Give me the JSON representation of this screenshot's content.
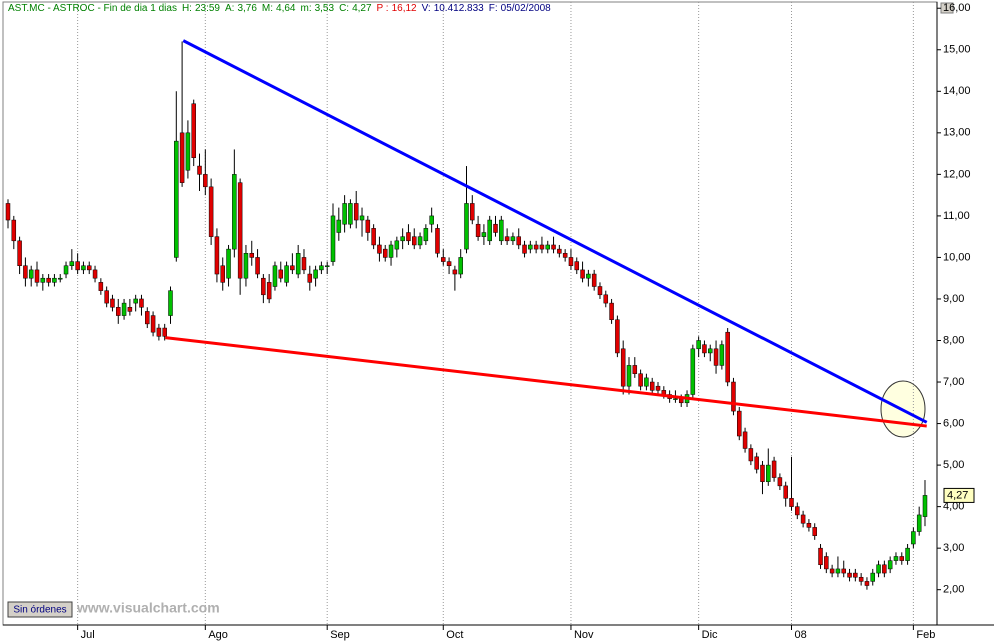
{
  "chart_data": {
    "type": "candlestick",
    "header": {
      "title": "AST.MC - ASTROC - Fin de dia 1 dias",
      "items": [
        {
          "label": "H:",
          "value": "23:59",
          "color": "#008000"
        },
        {
          "label": "A:",
          "value": "3,76",
          "color": "#008000"
        },
        {
          "label": "M:",
          "value": "4,64",
          "color": "#008000"
        },
        {
          "label": "m:",
          "value": "3,53",
          "color": "#008000"
        },
        {
          "label": "C:",
          "value": "4,27",
          "color": "#008000"
        },
        {
          "label": "P :",
          "value": "16,12",
          "color": "#e00000"
        },
        {
          "label": "V:",
          "value": "10.412.833",
          "color": "#000080"
        },
        {
          "label": "F:",
          "value": "05/02/2008",
          "color": "#000080"
        }
      ]
    },
    "up_color": "#00c000",
    "down_color": "#e00000",
    "xlim": [
      -0.86,
      160.07
    ],
    "ylim": [
      1.15,
      16.15
    ],
    "xticks": [
      {
        "value": 12,
        "label": "Jul"
      },
      {
        "value": 34,
        "label": "Ago"
      },
      {
        "value": 55,
        "label": "Sep"
      },
      {
        "value": 75,
        "label": "Oct"
      },
      {
        "value": 97,
        "label": "Nov"
      },
      {
        "value": 119,
        "label": "Dic"
      },
      {
        "value": 135,
        "label": "08"
      },
      {
        "value": 156,
        "label": "Feb"
      }
    ],
    "yticks": [
      {
        "value": 2,
        "label": "2,00"
      },
      {
        "value": 3,
        "label": "3,00"
      },
      {
        "value": 4,
        "label": "4,00"
      },
      {
        "value": 5,
        "label": "5,00"
      },
      {
        "value": 6,
        "label": "6,00"
      },
      {
        "value": 7,
        "label": "7,00"
      },
      {
        "value": 8,
        "label": "8,00"
      },
      {
        "value": 9,
        "label": "9,00"
      },
      {
        "value": 10,
        "label": "10,00"
      },
      {
        "value": 11,
        "label": "11,00"
      },
      {
        "value": 12,
        "label": "12,00"
      },
      {
        "value": 13,
        "label": "13,00"
      },
      {
        "value": 14,
        "label": "14,00"
      },
      {
        "value": 15,
        "label": "15,00"
      },
      {
        "value": 16,
        "label": "16,00"
      }
    ],
    "last_price": {
      "value": 4.27,
      "label": "4,27"
    },
    "trendlines": [
      {
        "color": "#0000ff",
        "x": [
          30.2,
          158.3
        ],
        "y": [
          15.22,
          6.03
        ]
      },
      {
        "color": "#ff0000",
        "x": [
          27.1,
          158.3
        ],
        "y": [
          8.07,
          5.94
        ]
      }
    ],
    "ohlc": [
      [
        11.3,
        11.4,
        10.7,
        10.9
      ],
      [
        10.9,
        11.0,
        10.2,
        10.4
      ],
      [
        10.4,
        10.5,
        9.6,
        9.8
      ],
      [
        9.8,
        10.0,
        9.3,
        9.5
      ],
      [
        9.5,
        9.8,
        9.3,
        9.7
      ],
      [
        9.7,
        9.9,
        9.3,
        9.4
      ],
      [
        9.4,
        9.6,
        9.2,
        9.5
      ],
      [
        9.5,
        9.6,
        9.3,
        9.4
      ],
      [
        9.4,
        9.6,
        9.3,
        9.5
      ],
      [
        9.5,
        9.6,
        9.4,
        9.5
      ],
      [
        9.6,
        9.9,
        9.5,
        9.8
      ],
      [
        9.8,
        10.2,
        9.7,
        9.9
      ],
      [
        9.9,
        10.1,
        9.6,
        9.7
      ],
      [
        9.7,
        9.9,
        9.6,
        9.8
      ],
      [
        9.8,
        9.9,
        9.6,
        9.7
      ],
      [
        9.7,
        9.8,
        9.4,
        9.5
      ],
      [
        9.4,
        9.5,
        9.1,
        9.2
      ],
      [
        9.2,
        9.3,
        8.8,
        8.9
      ],
      [
        9.0,
        9.1,
        8.7,
        8.8
      ],
      [
        8.8,
        9.0,
        8.4,
        8.6
      ],
      [
        8.6,
        9.0,
        8.5,
        8.9
      ],
      [
        8.8,
        9.0,
        8.6,
        8.7
      ],
      [
        8.9,
        9.1,
        8.7,
        9.0
      ],
      [
        9.0,
        9.1,
        8.6,
        8.8
      ],
      [
        8.7,
        8.8,
        8.3,
        8.4
      ],
      [
        8.6,
        8.7,
        8.1,
        8.2
      ],
      [
        8.3,
        8.4,
        8.0,
        8.1
      ],
      [
        8.3,
        8.4,
        8.0,
        8.1
      ],
      [
        8.6,
        9.3,
        8.4,
        9.2
      ],
      [
        10.0,
        14.0,
        9.9,
        12.8
      ],
      [
        13.0,
        15.2,
        11.7,
        11.8
      ],
      [
        12.1,
        13.3,
        11.9,
        13.0
      ],
      [
        13.7,
        13.8,
        12.2,
        12.4
      ],
      [
        12.2,
        12.5,
        11.6,
        12.0
      ],
      [
        12.0,
        12.6,
        11.5,
        11.7
      ],
      [
        11.7,
        11.9,
        10.3,
        10.5
      ],
      [
        10.5,
        10.7,
        9.4,
        9.6
      ],
      [
        9.8,
        10.0,
        9.2,
        9.4
      ],
      [
        9.5,
        10.3,
        9.3,
        10.2
      ],
      [
        10.2,
        12.6,
        10.0,
        12.0
      ],
      [
        11.8,
        11.9,
        9.1,
        9.5
      ],
      [
        9.5,
        10.3,
        9.3,
        10.1
      ],
      [
        10.1,
        10.4,
        9.8,
        10.0
      ],
      [
        10.0,
        10.2,
        9.5,
        9.6
      ],
      [
        9.5,
        9.6,
        8.9,
        9.1
      ],
      [
        9.4,
        9.6,
        8.9,
        9.0
      ],
      [
        9.3,
        9.9,
        9.2,
        9.8
      ],
      [
        9.7,
        9.9,
        9.4,
        9.5
      ],
      [
        9.4,
        9.9,
        9.3,
        9.8
      ],
      [
        9.8,
        10.1,
        9.6,
        9.7
      ],
      [
        9.6,
        10.3,
        9.5,
        10.1
      ],
      [
        10.0,
        10.2,
        9.6,
        9.7
      ],
      [
        9.6,
        9.8,
        9.2,
        9.4
      ],
      [
        9.5,
        9.8,
        9.3,
        9.7
      ],
      [
        9.7,
        9.9,
        9.6,
        9.8
      ],
      [
        9.8,
        9.9,
        9.6,
        9.8
      ],
      [
        9.9,
        11.3,
        9.8,
        11.0
      ],
      [
        10.6,
        11.2,
        10.4,
        10.9
      ],
      [
        10.8,
        11.5,
        10.6,
        11.3
      ],
      [
        10.8,
        11.4,
        10.7,
        11.3
      ],
      [
        11.3,
        11.6,
        10.7,
        10.9
      ],
      [
        10.9,
        11.2,
        10.5,
        11.0
      ],
      [
        10.9,
        11.0,
        10.4,
        10.6
      ],
      [
        10.7,
        10.8,
        10.2,
        10.3
      ],
      [
        10.3,
        10.5,
        9.9,
        10.1
      ],
      [
        10.2,
        10.3,
        9.9,
        10.0
      ],
      [
        10.0,
        10.4,
        9.8,
        10.3
      ],
      [
        10.2,
        10.5,
        10.0,
        10.4
      ],
      [
        10.4,
        10.7,
        10.2,
        10.5
      ],
      [
        10.6,
        10.8,
        10.3,
        10.4
      ],
      [
        10.5,
        10.7,
        10.2,
        10.3
      ],
      [
        10.3,
        10.6,
        10.2,
        10.5
      ],
      [
        10.4,
        10.8,
        10.3,
        10.7
      ],
      [
        10.8,
        11.2,
        10.6,
        11.0
      ],
      [
        10.7,
        10.8,
        10.0,
        10.1
      ],
      [
        10.0,
        10.2,
        9.8,
        9.9
      ],
      [
        9.9,
        10.0,
        9.6,
        9.8
      ],
      [
        9.7,
        9.8,
        9.2,
        9.6
      ],
      [
        9.6,
        10.2,
        9.5,
        10.0
      ],
      [
        10.2,
        12.2,
        10.1,
        11.3
      ],
      [
        11.3,
        11.5,
        10.8,
        10.9
      ],
      [
        10.8,
        11.0,
        10.4,
        10.5
      ],
      [
        10.5,
        10.8,
        10.3,
        10.6
      ],
      [
        10.4,
        11.0,
        10.3,
        10.9
      ],
      [
        10.8,
        11.0,
        10.5,
        10.6
      ],
      [
        10.4,
        11.0,
        10.3,
        10.9
      ],
      [
        10.5,
        10.7,
        10.3,
        10.4
      ],
      [
        10.4,
        10.6,
        10.3,
        10.5
      ],
      [
        10.5,
        10.7,
        10.2,
        10.3
      ],
      [
        10.3,
        10.4,
        10.0,
        10.1
      ],
      [
        10.2,
        10.4,
        10.1,
        10.3
      ],
      [
        10.3,
        10.4,
        10.1,
        10.2
      ],
      [
        10.3,
        10.5,
        10.1,
        10.2
      ],
      [
        10.2,
        10.4,
        10.1,
        10.3
      ],
      [
        10.3,
        10.5,
        10.1,
        10.2
      ],
      [
        10.2,
        10.3,
        10.0,
        10.1
      ],
      [
        10.1,
        10.2,
        9.9,
        10.0
      ],
      [
        10.0,
        10.2,
        9.7,
        9.8
      ],
      [
        9.9,
        10.0,
        9.6,
        9.7
      ],
      [
        9.7,
        9.9,
        9.4,
        9.5
      ],
      [
        9.5,
        9.7,
        9.3,
        9.6
      ],
      [
        9.6,
        9.7,
        9.2,
        9.3
      ],
      [
        9.3,
        9.4,
        9.0,
        9.1
      ],
      [
        9.1,
        9.2,
        8.8,
        8.9
      ],
      [
        8.9,
        9.0,
        8.4,
        8.5
      ],
      [
        8.5,
        8.6,
        7.6,
        7.7
      ],
      [
        7.8,
        8.0,
        6.7,
        6.9
      ],
      [
        6.9,
        7.6,
        6.7,
        7.4
      ],
      [
        7.4,
        7.6,
        7.1,
        7.2
      ],
      [
        7.2,
        7.3,
        6.8,
        6.9
      ],
      [
        6.9,
        7.2,
        6.8,
        7.1
      ],
      [
        7.0,
        7.1,
        6.7,
        6.8
      ],
      [
        6.9,
        7.0,
        6.7,
        6.8
      ],
      [
        6.8,
        6.9,
        6.6,
        6.7
      ],
      [
        6.7,
        6.8,
        6.5,
        6.6
      ],
      [
        6.6,
        6.8,
        6.5,
        6.6
      ],
      [
        6.6,
        6.7,
        6.4,
        6.5
      ],
      [
        6.5,
        6.8,
        6.4,
        6.7
      ],
      [
        6.7,
        7.9,
        6.6,
        7.8
      ],
      [
        7.8,
        8.1,
        7.6,
        8.0
      ],
      [
        7.9,
        8.0,
        7.6,
        7.7
      ],
      [
        7.7,
        7.9,
        7.5,
        7.8
      ],
      [
        7.8,
        8.0,
        7.2,
        7.4
      ],
      [
        7.4,
        8.0,
        7.3,
        7.9
      ],
      [
        8.2,
        8.3,
        6.9,
        7.0
      ],
      [
        7.0,
        7.1,
        6.2,
        6.3
      ],
      [
        6.3,
        6.4,
        5.6,
        5.7
      ],
      [
        5.8,
        5.9,
        5.3,
        5.4
      ],
      [
        5.4,
        5.5,
        5.0,
        5.1
      ],
      [
        5.2,
        5.3,
        4.8,
        4.9
      ],
      [
        5.0,
        5.1,
        4.3,
        4.6
      ],
      [
        4.6,
        5.4,
        4.5,
        5.0
      ],
      [
        5.1,
        5.2,
        4.6,
        4.7
      ],
      [
        4.7,
        4.8,
        4.4,
        4.5
      ],
      [
        4.5,
        4.6,
        4.0,
        4.2
      ],
      [
        4.2,
        5.2,
        3.9,
        4.0
      ],
      [
        4.0,
        4.1,
        3.7,
        3.8
      ],
      [
        3.8,
        3.9,
        3.5,
        3.6
      ],
      [
        3.6,
        3.7,
        3.4,
        3.5
      ],
      [
        3.5,
        3.6,
        3.2,
        3.3
      ],
      [
        3.0,
        3.1,
        2.5,
        2.6
      ],
      [
        2.8,
        2.9,
        2.4,
        2.5
      ],
      [
        2.5,
        2.6,
        2.3,
        2.4
      ],
      [
        2.4,
        2.8,
        2.3,
        2.5
      ],
      [
        2.5,
        2.7,
        2.3,
        2.4
      ],
      [
        2.4,
        2.5,
        2.2,
        2.3
      ],
      [
        2.4,
        2.5,
        2.2,
        2.3
      ],
      [
        2.3,
        2.4,
        2.1,
        2.2
      ],
      [
        2.2,
        2.3,
        2.0,
        2.1
      ],
      [
        2.2,
        2.5,
        2.1,
        2.4
      ],
      [
        2.4,
        2.7,
        2.3,
        2.6
      ],
      [
        2.6,
        2.7,
        2.3,
        2.4
      ],
      [
        2.5,
        2.8,
        2.4,
        2.7
      ],
      [
        2.7,
        2.9,
        2.6,
        2.8
      ],
      [
        2.8,
        2.9,
        2.6,
        2.7
      ],
      [
        2.7,
        3.1,
        2.6,
        3.0
      ],
      [
        3.1,
        3.5,
        3.0,
        3.4
      ],
      [
        3.4,
        4.0,
        3.3,
        3.8
      ],
      [
        3.76,
        4.64,
        3.53,
        4.27
      ]
    ]
  },
  "ui": {
    "button": "Sin órdenes",
    "watermark": "www.visualchart.com"
  }
}
